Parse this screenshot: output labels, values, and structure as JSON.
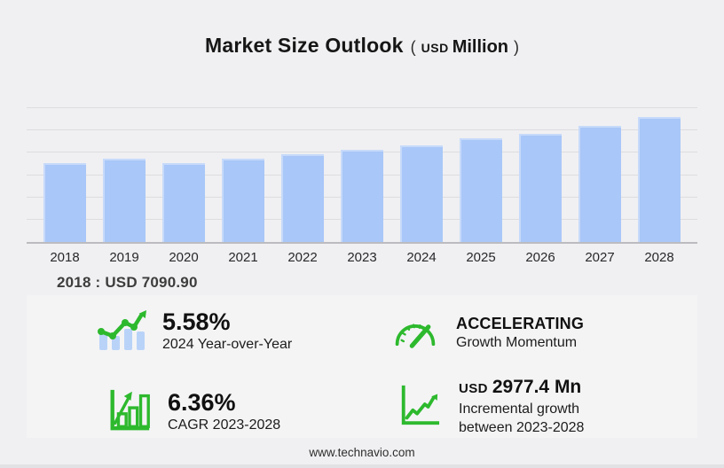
{
  "page": {
    "title": "Market Size Outlook",
    "unit": {
      "open": "(",
      "currency": "USD",
      "word": "Million",
      "close": ")"
    },
    "base_note": "2018 : USD  7090.90",
    "footer_url": "www.technavio.com"
  },
  "chart_data": {
    "type": "bar",
    "title": "Market Size Outlook (USD Million)",
    "categories": [
      "2018",
      "2019",
      "2020",
      "2021",
      "2022",
      "2023",
      "2024",
      "2025",
      "2026",
      "2027",
      "2028"
    ],
    "values": [
      7090.9,
      7440,
      7070,
      7460,
      7850,
      8240,
      8700,
      9260,
      9690,
      10420,
      11220
    ],
    "ylabel": "",
    "xlabel": "",
    "ylim": [
      0,
      12000
    ],
    "grid_step": 2000,
    "grid": true,
    "legend": false,
    "bar_color": "#a9c7f8",
    "annotation": "2018 : USD 7090.90"
  },
  "stats": [
    {
      "icon": "trend-bars-icon",
      "value": "5.58%",
      "label": "2024 Year-over-Year"
    },
    {
      "icon": "gauge-icon",
      "value": "ACCELERATING",
      "label": "Growth Momentum"
    },
    {
      "icon": "growth-chart-icon",
      "value": "6.36%",
      "label": "CAGR 2023-2028"
    },
    {
      "icon": "line-chart-icon",
      "value_prefix": "USD",
      "value": "2977.4 Mn",
      "label_line1": "Incremental growth",
      "label_line2": "between 2023-2028"
    }
  ],
  "colors": {
    "bar_blue": "#a9c7f8",
    "icon_green": "#2db92d",
    "icon_bar_blue": "#b9d3f8",
    "page_bg": "#f0f0f2",
    "panel_bg": "#f4f4f5",
    "gridline": "#dddde1",
    "axis_line": "#bcbcc0"
  }
}
